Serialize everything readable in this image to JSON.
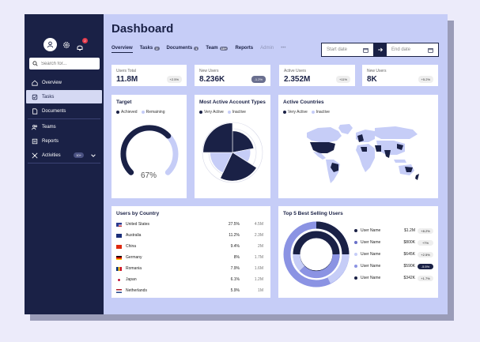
{
  "colors": {
    "navy": "#1a2146",
    "periwinkle": "#8b93e3",
    "light": "#c6cdf7",
    "accent": "#5860b8"
  },
  "sidebar": {
    "search_placeholder": "Search for...",
    "notification_count": "2",
    "items": [
      {
        "label": "Overview",
        "icon": "home-icon"
      },
      {
        "label": "Tasks",
        "icon": "tasks-icon",
        "active": true
      },
      {
        "label": "Documents",
        "icon": "documents-icon"
      },
      {
        "label": "Teams",
        "icon": "teams-icon"
      },
      {
        "label": "Reports",
        "icon": "reports-icon"
      },
      {
        "label": "Activities",
        "icon": "activities-icon",
        "count": "10+"
      }
    ]
  },
  "header": {
    "title": "Dashboard",
    "tabs": [
      {
        "label": "Overview"
      },
      {
        "label": "Tasks",
        "count": "2"
      },
      {
        "label": "Documents",
        "count": "1"
      },
      {
        "label": "Team",
        "count": "10+"
      },
      {
        "label": "Reports"
      },
      {
        "label": "Admin"
      },
      {
        "label": "•••"
      }
    ],
    "start_date": "Start date",
    "end_date": "End date"
  },
  "stats": [
    {
      "label": "Users Total",
      "value": "11.8M",
      "delta": "+2.5%"
    },
    {
      "label": "New Users",
      "value": "8.236K",
      "delta": "-1.2%"
    },
    {
      "label": "Active Users",
      "value": "2.352M",
      "delta": "+11%"
    },
    {
      "label": "New Users",
      "value": "8K",
      "delta": "+5.2%"
    }
  ],
  "target": {
    "title": "Target",
    "legend": [
      "Achieved",
      "Remaining"
    ],
    "percent_label": "67%",
    "percent": 67
  },
  "account_types": {
    "title": "Most Active Account Types",
    "legend": [
      "Very Active",
      "Inactive"
    ],
    "chart_data": {
      "type": "pie",
      "slices": [
        {
          "value": 22,
          "radius": 0.72,
          "color": "#1a2146"
        },
        {
          "value": 12,
          "radius": 0.6,
          "color": "#c6cdf7"
        },
        {
          "value": 23,
          "radius": 0.95,
          "color": "#1a2146"
        },
        {
          "value": 18,
          "radius": 0.75,
          "color": "#c6cdf7"
        },
        {
          "value": 25,
          "radius": 0.98,
          "color": "#1a2146"
        }
      ]
    }
  },
  "countries_map": {
    "title": "Active Countries",
    "legend": [
      "Very Active",
      "Inactive"
    ]
  },
  "users_by_country": {
    "title": "Users by Country",
    "rows": [
      {
        "name": "United States",
        "pct": "27.5%",
        "value": "4.5M",
        "flag": "us-flag"
      },
      {
        "name": "Australia",
        "pct": "11.2%",
        "value": "2.3M",
        "flag": "au-flag"
      },
      {
        "name": "China",
        "pct": "9.4%",
        "value": "2M",
        "flag": "cn-flag"
      },
      {
        "name": "Germany",
        "pct": "8%",
        "value": "1.7M",
        "flag": "de-flag"
      },
      {
        "name": "Romania",
        "pct": "7.9%",
        "value": "1.6M",
        "flag": "ro-flag"
      },
      {
        "name": "Japan",
        "pct": "6.1%",
        "value": "1.2M",
        "flag": "jp-flag"
      },
      {
        "name": "Netherlands",
        "pct": "5.9%",
        "value": "1M",
        "flag": "nl-flag"
      }
    ]
  },
  "top_selling": {
    "title": "Top 5 Best Selling Users",
    "rows": [
      {
        "name": "User Name",
        "amount": "$1.2M",
        "delta": "+8.2%",
        "color": "#1a2146"
      },
      {
        "name": "User Name",
        "amount": "$800K",
        "delta": "+7%",
        "color": "#6970c8"
      },
      {
        "name": "User Name",
        "amount": "$645K",
        "delta": "+2.5%",
        "color": "#c6cdf7"
      },
      {
        "name": "User Name",
        "amount": "$590K",
        "delta": "-5.5%",
        "color": "#8b93e3",
        "dark": true
      },
      {
        "name": "User Name",
        "amount": "$342K",
        "delta": "+1.7%",
        "color": "#1a2146"
      }
    ]
  }
}
